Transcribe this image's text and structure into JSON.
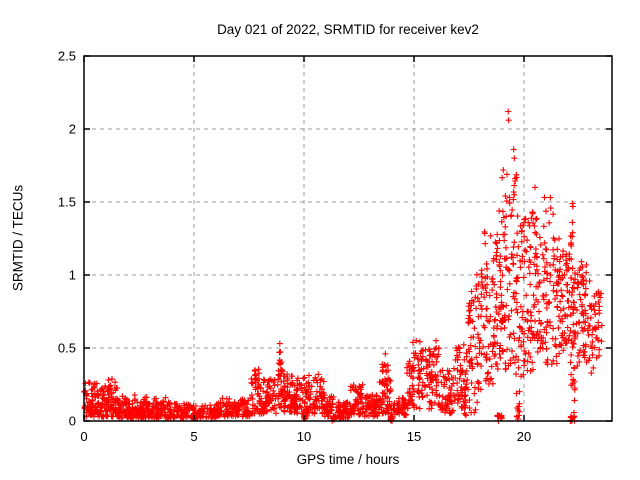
{
  "window": {
    "title": "Day 021 of 2022, SRMTID for receiver kev2"
  },
  "chart_data": {
    "type": "scatter",
    "title": "Day 021 of 2022, SRMTID for receiver kev2",
    "xlabel": "GPS time / hours",
    "ylabel": "SRMTID / TECUs",
    "xlim": [
      0,
      24
    ],
    "ylim": [
      0,
      2.5
    ],
    "xticks": [
      0,
      5,
      10,
      15,
      20
    ],
    "yticks": [
      0,
      0.5,
      1,
      1.5,
      2,
      2.5
    ],
    "grid": true,
    "grid_style": "dashed",
    "legend": false,
    "marker": "+",
    "marker_color": "#ff0000",
    "grid_color": "#9b9b9b",
    "frame_color": "#000000",
    "background_color": "#ffffff",
    "cluster_fields": [
      "x_start_hours",
      "x_end_hours",
      "y_min_tecu",
      "y_max_tecu",
      "point_count",
      "bottom_bias"
    ],
    "clusters": [
      [
        0.0,
        0.5,
        0.03,
        0.27,
        60,
        1.4
      ],
      [
        0.5,
        1.05,
        0.03,
        0.22,
        55,
        1.4
      ],
      [
        0.55,
        1.1,
        0.18,
        0.28,
        8,
        1
      ],
      [
        1.05,
        1.55,
        0.03,
        0.25,
        55,
        1.4
      ],
      [
        1.1,
        1.5,
        0.2,
        0.29,
        7,
        1
      ],
      [
        1.55,
        2.1,
        0.02,
        0.17,
        50,
        1.4
      ],
      [
        2.1,
        3.0,
        0.02,
        0.14,
        80,
        1.4
      ],
      [
        2.2,
        2.9,
        0.11,
        0.19,
        9,
        1
      ],
      [
        3.0,
        4.0,
        0.02,
        0.13,
        80,
        1.4
      ],
      [
        3.1,
        3.9,
        0.1,
        0.17,
        8,
        1
      ],
      [
        4.0,
        5.0,
        0.02,
        0.12,
        75,
        1.4
      ],
      [
        5.0,
        6.0,
        0.02,
        0.11,
        70,
        1.4
      ],
      [
        6.0,
        7.0,
        0.03,
        0.13,
        70,
        1.4
      ],
      [
        6.2,
        6.9,
        0.1,
        0.16,
        8,
        1
      ],
      [
        7.0,
        7.6,
        0.03,
        0.16,
        45,
        1.4
      ],
      [
        7.6,
        8.15,
        0.05,
        0.3,
        50,
        1.3
      ],
      [
        7.7,
        8.05,
        0.24,
        0.37,
        9,
        1
      ],
      [
        8.15,
        8.75,
        0.05,
        0.3,
        55,
        1.3
      ],
      [
        8.8,
        9.05,
        0.08,
        0.35,
        25,
        1.1
      ],
      [
        8.85,
        8.98,
        0.3,
        0.5,
        9,
        1
      ],
      [
        9.05,
        9.6,
        0.06,
        0.33,
        60,
        1.3
      ],
      [
        9.6,
        10.2,
        0.05,
        0.3,
        55,
        1.3
      ],
      [
        10.0,
        10.15,
        0.0,
        0.05,
        6,
        1
      ],
      [
        10.2,
        10.9,
        0.05,
        0.32,
        60,
        1.3
      ],
      [
        10.9,
        11.35,
        0.03,
        0.18,
        40,
        1.3
      ],
      [
        11.28,
        11.45,
        0.0,
        0.03,
        12,
        1
      ],
      [
        11.45,
        12.1,
        0.02,
        0.13,
        55,
        1.4
      ],
      [
        12.1,
        12.75,
        0.04,
        0.25,
        55,
        1.3
      ],
      [
        12.75,
        13.4,
        0.03,
        0.18,
        55,
        1.3
      ],
      [
        13.4,
        14.0,
        0.05,
        0.3,
        50,
        1.2
      ],
      [
        13.55,
        13.85,
        0.24,
        0.46,
        12,
        1
      ],
      [
        13.88,
        14.05,
        0.0,
        0.03,
        12,
        1
      ],
      [
        14.05,
        14.65,
        0.04,
        0.16,
        45,
        1.3
      ],
      [
        14.65,
        15.35,
        0.08,
        0.45,
        55,
        1.1
      ],
      [
        14.9,
        15.3,
        0.38,
        0.55,
        8,
        1
      ],
      [
        15.35,
        16.2,
        0.08,
        0.5,
        70,
        1.1
      ],
      [
        15.6,
        16.15,
        0.44,
        0.56,
        8,
        1
      ],
      [
        16.2,
        16.8,
        0.05,
        0.35,
        50,
        1.2
      ],
      [
        16.8,
        17.35,
        0.08,
        0.55,
        50,
        1.1
      ],
      [
        17.28,
        17.42,
        0.0,
        0.5,
        18,
        1
      ],
      [
        17.45,
        18.05,
        0.15,
        0.85,
        55,
        1.0
      ],
      [
        17.6,
        18.0,
        0.8,
        1.02,
        6,
        1
      ],
      [
        17.5,
        17.95,
        0.02,
        0.15,
        6,
        1
      ],
      [
        18.05,
        18.7,
        0.25,
        1.05,
        60,
        1.0
      ],
      [
        18.2,
        18.65,
        1.0,
        1.3,
        8,
        1
      ],
      [
        18.78,
        19.0,
        0.0,
        0.04,
        14,
        1
      ],
      [
        18.7,
        19.75,
        0.35,
        1.45,
        115,
        1.0
      ],
      [
        18.9,
        19.7,
        1.4,
        1.72,
        16,
        1
      ],
      [
        19.6,
        19.8,
        0.0,
        0.45,
        13,
        1
      ],
      [
        19.75,
        20.6,
        0.3,
        1.45,
        100,
        1.0
      ],
      [
        20.6,
        21.6,
        0.35,
        1.28,
        95,
        1.0
      ],
      [
        20.8,
        21.35,
        1.3,
        1.55,
        6,
        1
      ],
      [
        21.6,
        22.1,
        0.45,
        1.2,
        55,
        1.0
      ],
      [
        22.1,
        22.32,
        0.05,
        1.3,
        45,
        1.0
      ],
      [
        22.1,
        22.3,
        0.0,
        0.04,
        12,
        1
      ],
      [
        22.3,
        23.0,
        0.35,
        1.1,
        70,
        0.8
      ],
      [
        23.0,
        23.55,
        0.3,
        0.9,
        40,
        0.9
      ]
    ],
    "notable_points": [
      {
        "x": 19.28,
        "y": 2.12
      },
      {
        "x": 19.3,
        "y": 2.06
      },
      {
        "x": 19.53,
        "y": 1.86
      },
      {
        "x": 19.56,
        "y": 1.8
      },
      {
        "x": 20.5,
        "y": 1.6
      },
      {
        "x": 21.2,
        "y": 1.53
      },
      {
        "x": 22.2,
        "y": 1.49
      },
      {
        "x": 22.22,
        "y": 1.47
      },
      {
        "x": 22.2,
        "y": 1.36
      },
      {
        "x": 22.21,
        "y": 1.29
      },
      {
        "x": 15.1,
        "y": 0.55
      },
      {
        "x": 16.0,
        "y": 0.55
      },
      {
        "x": 8.9,
        "y": 0.53
      },
      {
        "x": 13.7,
        "y": 0.46
      }
    ]
  }
}
